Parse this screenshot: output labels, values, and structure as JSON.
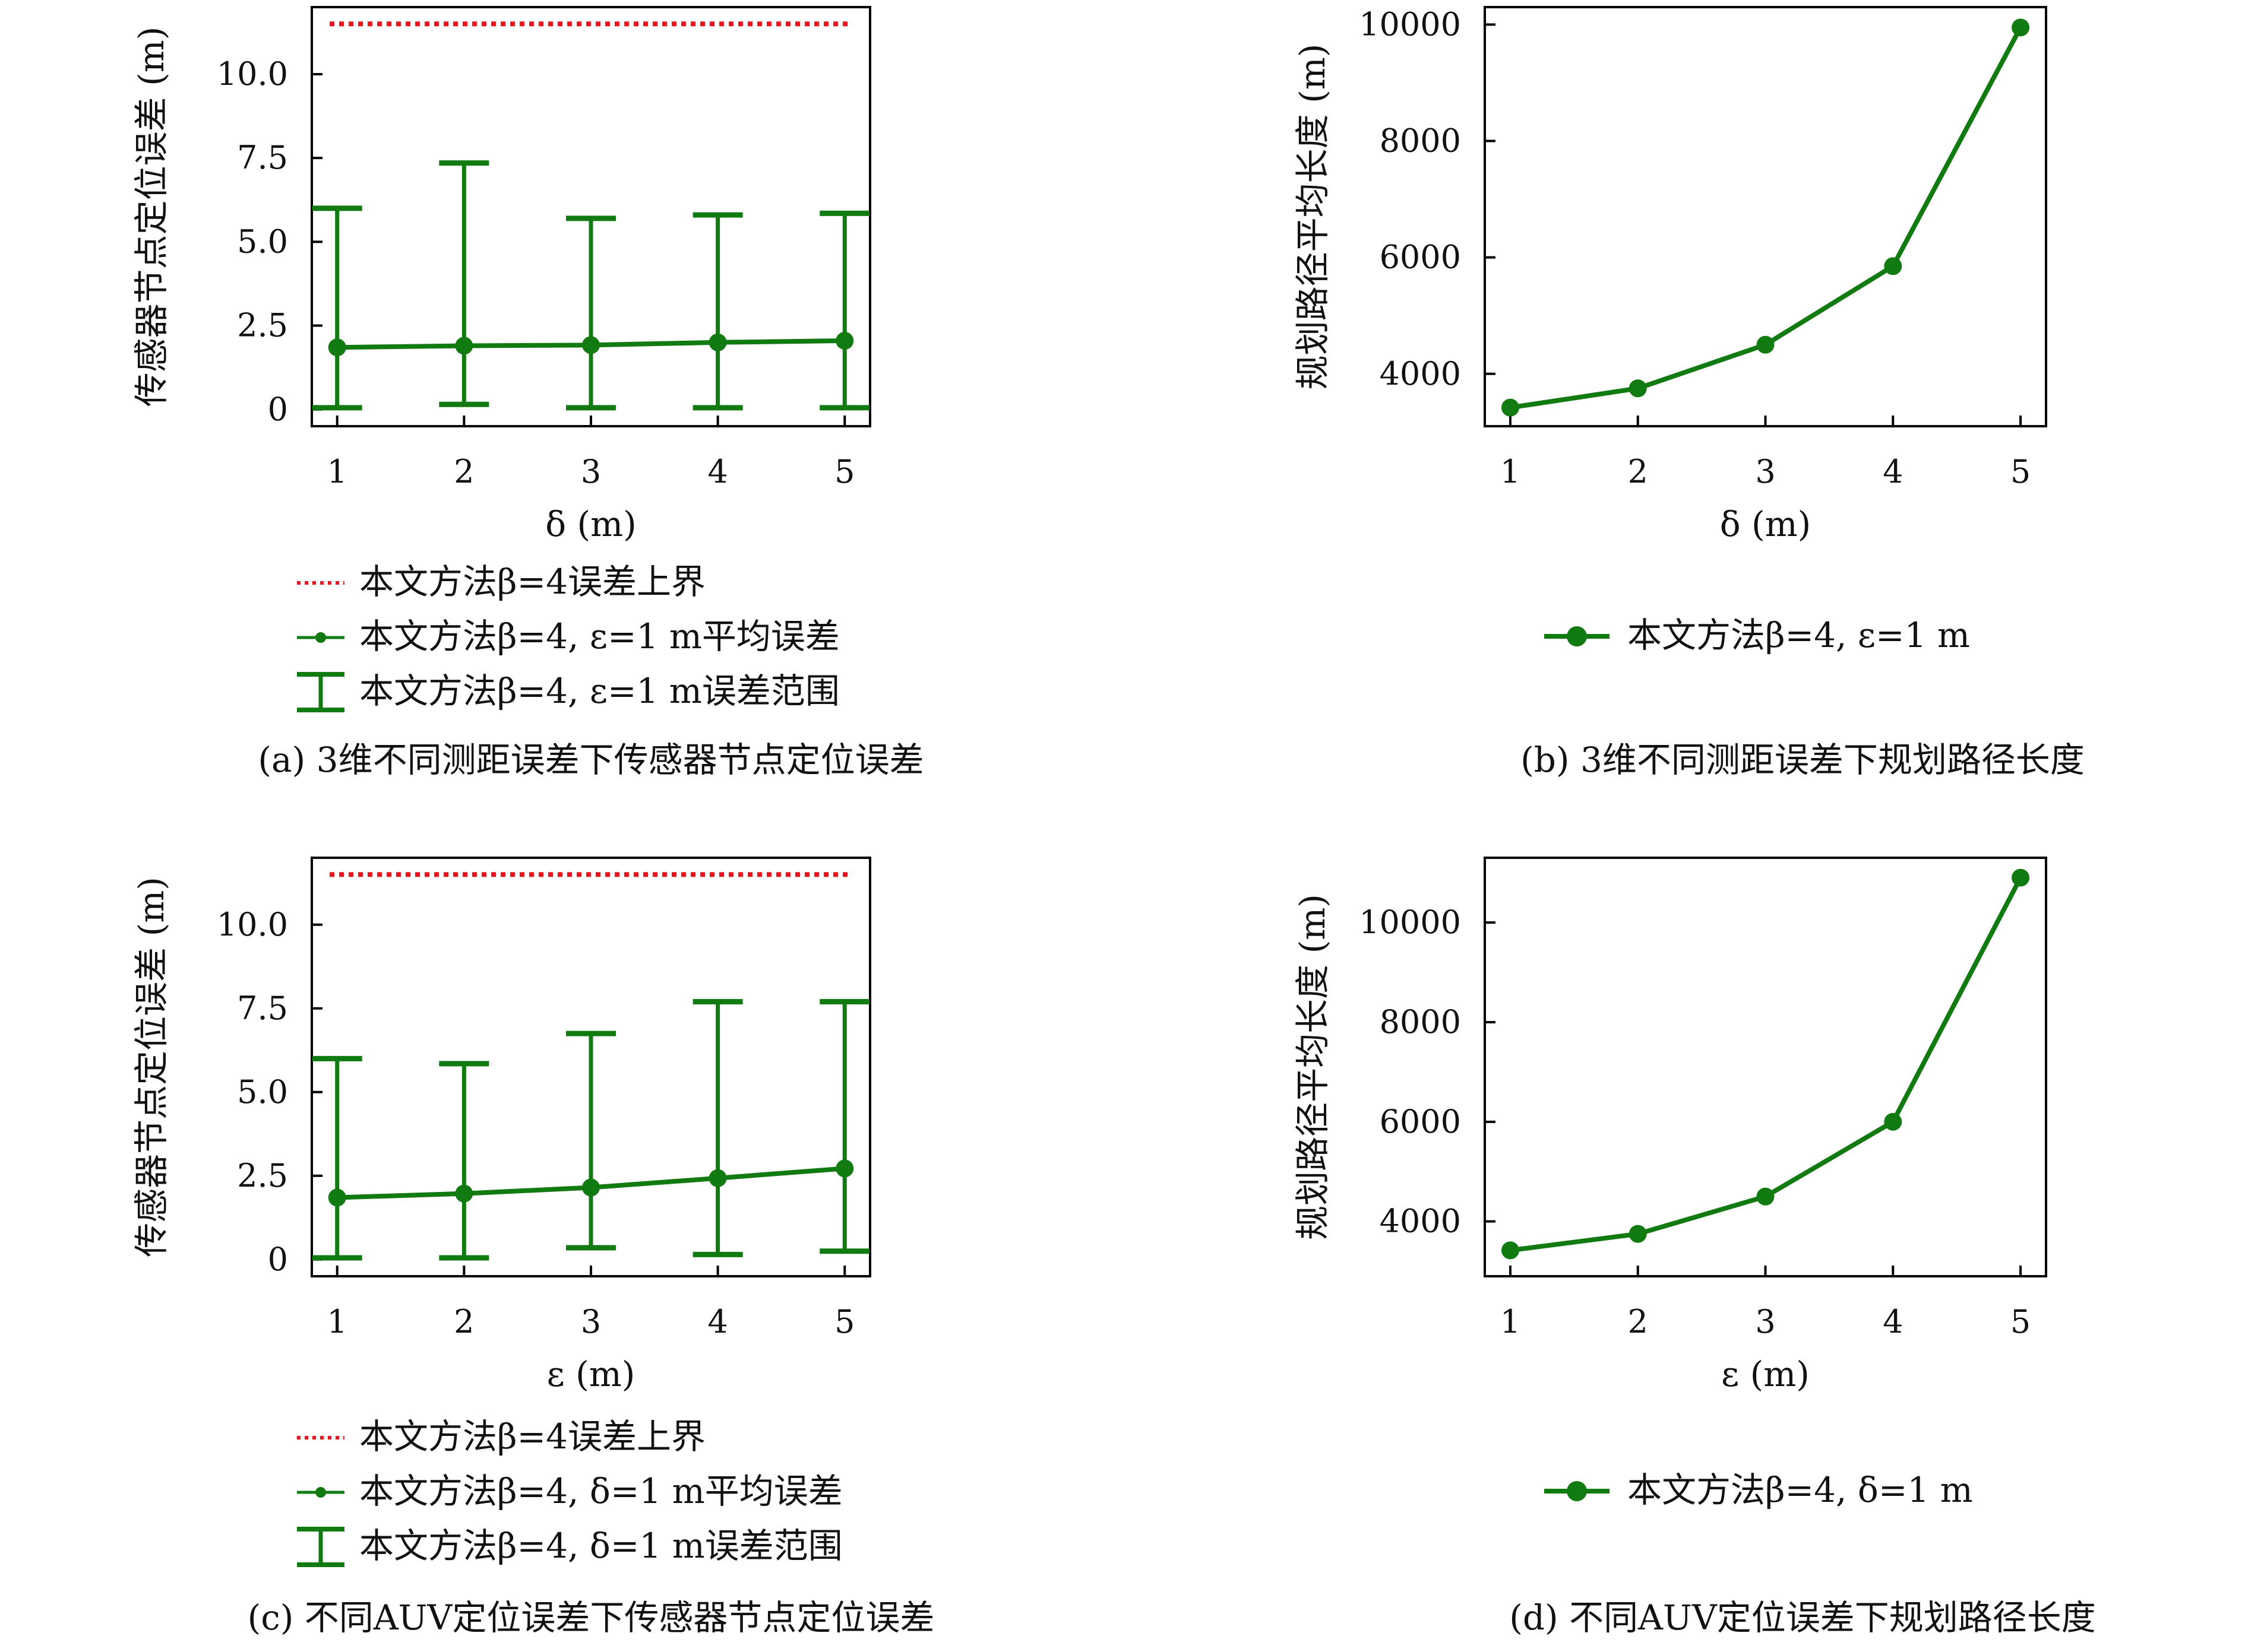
{
  "colors": {
    "series": "#117a11",
    "bound": "#e8141e",
    "axis": "#000000"
  },
  "chart_data": [
    {
      "id": "a",
      "type": "line",
      "caption": "(a) 3维不同测距误差下传感器节点定位误差",
      "xlabel": "δ (m)",
      "ylabel": "传感器节点定位误差 (m)",
      "x": [
        1,
        2,
        3,
        4,
        5
      ],
      "xlim": [
        0.8,
        5.2
      ],
      "ylim": [
        -0.5,
        12
      ],
      "yticks": [
        0,
        2.5,
        5.0,
        7.5,
        10.0
      ],
      "ytick_labels": [
        "0",
        "2.5",
        "5.0",
        "7.5",
        "10.0"
      ],
      "grid": false,
      "legend_position": "below",
      "bound": {
        "name": "本文方法β=4误差上界",
        "value": 11.5
      },
      "series": [
        {
          "name": "本文方法β=4, ε=1 m平均误差",
          "values": [
            1.85,
            1.9,
            1.92,
            2.0,
            2.05
          ]
        }
      ],
      "errorbars": {
        "name": "本文方法β=4, ε=1 m误差范围",
        "low": [
          0.05,
          0.15,
          0.05,
          0.05,
          0.05
        ],
        "high": [
          6.0,
          7.35,
          5.7,
          5.8,
          5.85
        ]
      }
    },
    {
      "id": "b",
      "type": "line",
      "caption": "(b) 3维不同测距误差下规划路径长度",
      "xlabel": "δ (m)",
      "ylabel": "规划路径平均长度 (m)",
      "x": [
        1,
        2,
        3,
        4,
        5
      ],
      "xlim": [
        0.8,
        5.2
      ],
      "ylim": [
        3100,
        10300
      ],
      "yticks": [
        4000,
        6000,
        8000,
        10000
      ],
      "ytick_labels": [
        "4000",
        "6000",
        "8000",
        "10000"
      ],
      "grid": false,
      "legend_position": "below",
      "series": [
        {
          "name": "本文方法β=4, ε=1 m",
          "values": [
            3420,
            3750,
            4500,
            5850,
            9950
          ]
        }
      ]
    },
    {
      "id": "c",
      "type": "line",
      "caption": "(c) 不同AUV定位误差下传感器节点定位误差",
      "xlabel": "ε (m)",
      "ylabel": "传感器节点定位误差 (m)",
      "x": [
        1,
        2,
        3,
        4,
        5
      ],
      "xlim": [
        0.8,
        5.2
      ],
      "ylim": [
        -0.5,
        12
      ],
      "yticks": [
        0,
        2.5,
        5.0,
        7.5,
        10.0
      ],
      "ytick_labels": [
        "0",
        "2.5",
        "5.0",
        "7.5",
        "10.0"
      ],
      "grid": false,
      "legend_position": "below",
      "bound": {
        "name": "本文方法β=4误差上界",
        "value": 11.5
      },
      "series": [
        {
          "name": "本文方法β=4, δ=1 m平均误差",
          "values": [
            1.85,
            1.97,
            2.15,
            2.43,
            2.72
          ]
        }
      ],
      "errorbars": {
        "name": "本文方法β=4, δ=1 m误差范围",
        "low": [
          0.05,
          0.05,
          0.35,
          0.15,
          0.25
        ],
        "high": [
          6.0,
          5.85,
          6.75,
          7.7,
          7.7
        ]
      }
    },
    {
      "id": "d",
      "type": "line",
      "caption": "(d) 不同AUV定位误差下规划路径长度",
      "xlabel": "ε (m)",
      "ylabel": "规划路径平均长度 (m)",
      "x": [
        1,
        2,
        3,
        4,
        5
      ],
      "xlim": [
        0.8,
        5.2
      ],
      "ylim": [
        2900,
        11300
      ],
      "yticks": [
        4000,
        6000,
        8000,
        10000
      ],
      "ytick_labels": [
        "4000",
        "6000",
        "8000",
        "10000"
      ],
      "grid": false,
      "legend_position": "below",
      "series": [
        {
          "name": "本文方法β=4, δ=1 m",
          "values": [
            3420,
            3750,
            4500,
            6000,
            10900
          ]
        }
      ]
    }
  ]
}
